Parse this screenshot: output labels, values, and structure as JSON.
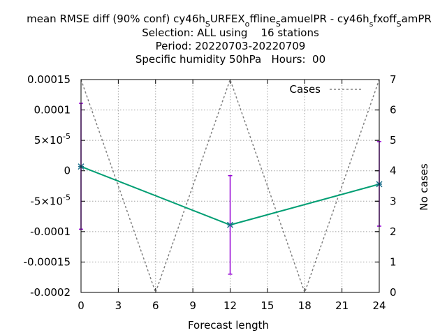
{
  "chart_data": {
    "type": "line",
    "title_lines": [
      "mean RMSE diff (90% conf) cy46h_SURFEX_offline_SamuelPR - cy46h_sfxoff_SamPR",
      "Selection: ALL using    16 stations",
      "Period: 20220703-20220709",
      "Specific humidity 50hPa   Hours:  00"
    ],
    "xlabel": "Forecast length",
    "ylabel": "",
    "y2label": "No cases",
    "x_ticks": [
      0,
      3,
      6,
      9,
      12,
      15,
      18,
      21,
      24
    ],
    "y_ticks": [
      {
        "value": 0.00015,
        "label": "0.00015"
      },
      {
        "value": 0.0001,
        "label": "0.0001"
      },
      {
        "value": 5e-05,
        "label": "5×10",
        "exp": "-5"
      },
      {
        "value": 0,
        "label": "0"
      },
      {
        "value": -5e-05,
        "label": "-5×10",
        "exp": "-5"
      },
      {
        "value": -0.0001,
        "label": "-0.0001"
      },
      {
        "value": -0.00015,
        "label": "-0.00015"
      },
      {
        "value": -0.0002,
        "label": "-0.0002"
      }
    ],
    "y2_ticks": [
      0,
      1,
      2,
      3,
      4,
      5,
      6,
      7
    ],
    "xlim": [
      0,
      24
    ],
    "ylim": [
      -0.0002,
      0.00015
    ],
    "y2lim": [
      0,
      7
    ],
    "grid": true,
    "legend_position": "top-right",
    "series": [
      {
        "name": "",
        "axis": "y",
        "color": "#009e73",
        "marker": "x",
        "x": [
          0,
          12,
          24
        ],
        "y": [
          7e-06,
          -8.9e-05,
          -2.2e-05
        ]
      },
      {
        "name": "Cases",
        "axis": "y2",
        "color": "#808080",
        "dash": true,
        "x": [
          0,
          6,
          12,
          18,
          24
        ],
        "y": [
          7,
          0,
          7,
          0,
          7
        ]
      }
    ],
    "error_bars": {
      "color": "#9400d3",
      "x": [
        0,
        12,
        24
      ],
      "low": [
        -9.6e-05,
        -0.00017,
        -9.1e-05
      ],
      "high": [
        0.000111,
        -8e-06,
        4.8e-05
      ]
    }
  }
}
